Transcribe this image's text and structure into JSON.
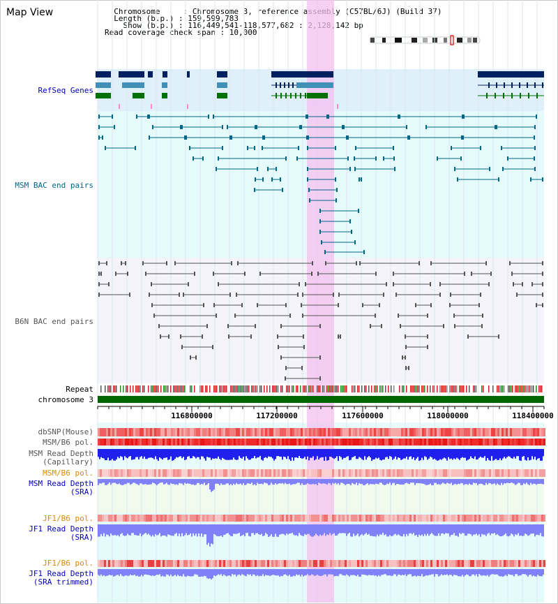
{
  "header": {
    "title": "Map View",
    "info_lines": [
      "  Chromosome     : Chromosome 3, reference assembly (C57BL/6J) (Build 37)",
      "  Length (b.p.) : 159,599,783",
      "    Show (b.p.) : 116,449,541-118,577,682 : 2,128,142 bp",
      "Read coverage check span : 10,000"
    ]
  },
  "tracks": {
    "refseq": "RefSeq Genes",
    "msm_bac": "MSM BAC end pairs",
    "b6n_bac": "B6N BAC end pairs",
    "repeat": "Repeat",
    "chromosome": "chromosome 3",
    "dbsnp": "dbSNP(Mouse)",
    "msm_b6_pol": "MSM/B6 pol.",
    "msm_depth_cap": "MSM Read Depth",
    "msm_depth_cap_sub": "(Capillary)",
    "msm_b6_pol_2": "MSM/B6 pol.",
    "msm_depth_sra": "MSM Read Depth",
    "msm_depth_sra_sub": "(SRA)",
    "jf1_b6_pol": "JF1/B6 pol.",
    "jf1_depth_sra": "JF1 Read Depth",
    "jf1_depth_sra_sub": "(SRA)",
    "jf1_b6_pol_2": "JF1/B6 pol.",
    "jf1_depth_trim": "JF1 Read Depth",
    "jf1_depth_trim_sub": "(SRA trimmed)"
  },
  "axis": {
    "ticks": [
      "116800000",
      "117200000",
      "117600000",
      "118000000",
      "118400000"
    ]
  },
  "colors": {
    "refseq_label": "#0000bb",
    "msm_label": "#006688",
    "b6n_label": "#555555",
    "msm_bac": "#006688",
    "b6n_bac": "#555555",
    "highlight": "#f4c0f0",
    "gene_dark": "#002060",
    "gene_mid": "#4090b8",
    "gene_green": "#007000",
    "chromosome_bar": "#006600",
    "depth_blue": "#2020ee",
    "depth_light": "#8080f8",
    "pol_orange": "#dd8800"
  }
}
